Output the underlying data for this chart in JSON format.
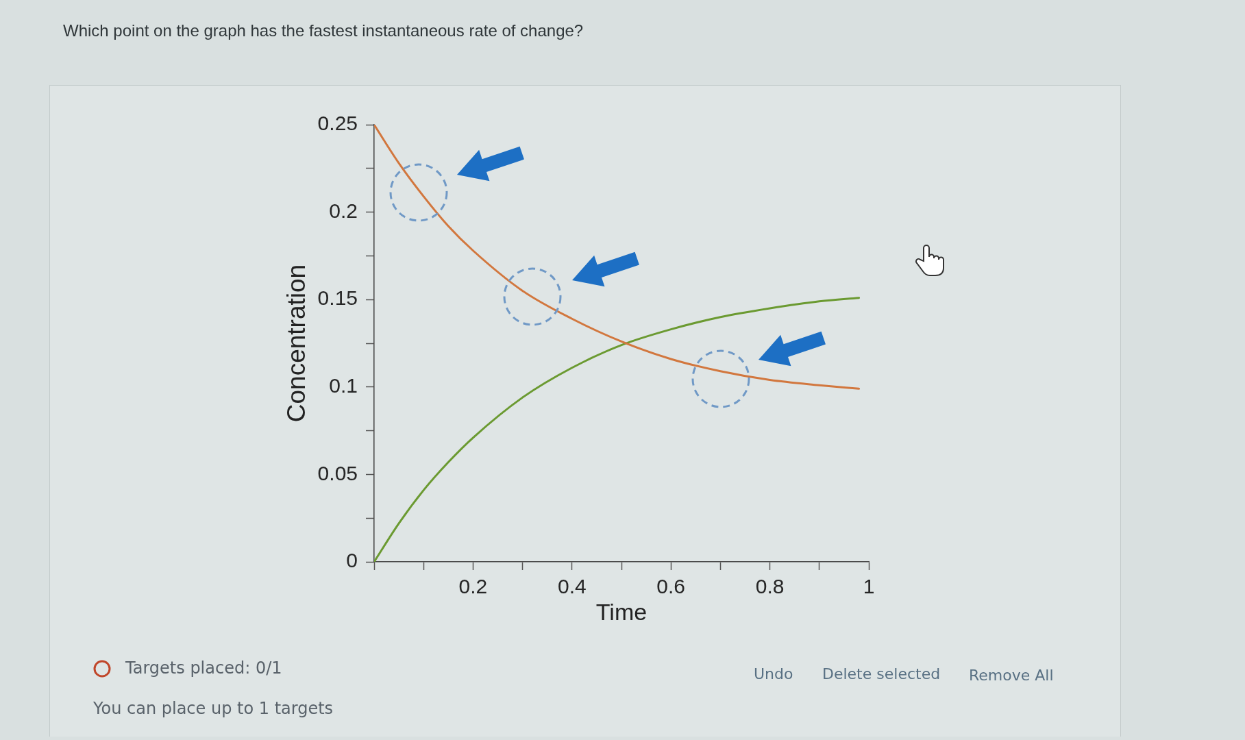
{
  "chart_data": {
    "type": "line",
    "title": "Which point on the graph has the fastest instantaneous rate of change?",
    "xlabel": "Time",
    "ylabel": "Concentration",
    "x": [
      0,
      0.05,
      0.1,
      0.15,
      0.2,
      0.3,
      0.4,
      0.5,
      0.6,
      0.7,
      0.8,
      0.9,
      0.98
    ],
    "series": [
      {
        "color": "#d2773e",
        "values": [
          0.25,
          0.228,
          0.209,
          0.192,
          0.178,
          0.155,
          0.139,
          0.126,
          0.116,
          0.109,
          0.104,
          0.101,
          0.099
        ]
      },
      {
        "color": "#6b9a31",
        "values": [
          0,
          0.022,
          0.041,
          0.057,
          0.071,
          0.094,
          0.111,
          0.124,
          0.133,
          0.14,
          0.145,
          0.149,
          0.151
        ]
      }
    ],
    "xlim": [
      0,
      1
    ],
    "xticks": [
      {
        "value": 0,
        "label": null
      },
      {
        "value": 0.1,
        "label": null
      },
      0.2,
      {
        "value": 0.3,
        "label": null
      },
      0.4,
      {
        "value": 0.5,
        "label": null
      },
      0.6,
      {
        "value": 0.7,
        "label": null
      },
      0.8,
      {
        "value": 0.9,
        "label": null
      },
      1
    ],
    "ylim": [
      0,
      0.25
    ],
    "yticks": [
      0,
      {
        "value": 0.025,
        "label": null
      },
      0.05,
      {
        "value": 0.075,
        "label": null
      },
      0.1,
      {
        "value": 0.125,
        "label": null
      },
      0.15,
      {
        "value": 0.175,
        "label": null
      },
      0.2,
      {
        "value": 0.225,
        "label": null
      },
      0.25
    ],
    "grid": false,
    "legend": false,
    "marker": "none",
    "line_style": "solid",
    "annotations": [
      "Targets placed: 0/1",
      "You can place up to 1 targets",
      "Undo",
      "Delete selected",
      "Remove All"
    ]
  }
}
